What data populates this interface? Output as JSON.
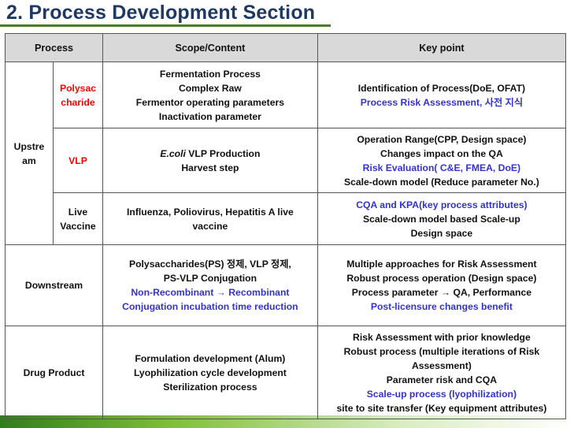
{
  "title": "2. Process Development Section",
  "colors": {
    "title": "#1f3864",
    "red": "#ff0000",
    "blue": "#3333cc",
    "header_bg": "#d9d9d9"
  },
  "headers": {
    "process": "Process",
    "scope": "Scope/Content",
    "key": "Key point"
  },
  "upstream": {
    "label_lines": [
      "Upstre",
      "am"
    ],
    "rows": [
      {
        "sub_lines": [
          "Polysac",
          "charide"
        ],
        "scope_lines": [
          "Fermentation Process",
          "Complex Raw",
          "Fermentor operating parameters",
          "Inactivation parameter"
        ],
        "key_lines": [
          {
            "text": "Identification of Process(DoE, OFAT)",
            "color": "black"
          },
          {
            "text": "Process Risk Assessment, 사전 지식",
            "color": "blue"
          }
        ]
      },
      {
        "sub_lines": [
          "VLP"
        ],
        "scope_lines_italic": "E.coli",
        "scope_lines": [
          "VLP Production",
          "Harvest step"
        ],
        "key_lines": [
          {
            "text": "Operation Range(CPP, Design space)",
            "color": "black"
          },
          {
            "text": "Changes impact on the QA",
            "color": "black"
          },
          {
            "text": "Risk Evaluation( C&E, FMEA, DoE)",
            "color": "blue"
          },
          {
            "text": "Scale-down model (Reduce parameter No.)",
            "color": "black"
          }
        ]
      },
      {
        "sub_lines": [
          "Live",
          "Vaccine"
        ],
        "scope_lines": [
          "Influenza, Poliovirus, Hepatitis A live",
          "vaccine"
        ],
        "key_lines": [
          {
            "text": "CQA and KPA(key process attributes)",
            "color": "blue"
          },
          {
            "text": "Scale-down model based Scale-up",
            "color": "black"
          },
          {
            "text": "Design space",
            "color": "black"
          }
        ]
      }
    ]
  },
  "downstream": {
    "label": "Downstream",
    "scope_lines": [
      {
        "text": "Polysaccharides(PS) 정제, VLP 정제,",
        "color": "black"
      },
      {
        "text": "PS-VLP Conjugation",
        "color": "black"
      },
      {
        "text": "Non-Recombinant → Recombinant",
        "color": "blue"
      },
      {
        "text": "Conjugation incubation time reduction",
        "color": "blue"
      }
    ],
    "key_lines": [
      {
        "text": "Multiple approaches for Risk Assessment",
        "color": "black"
      },
      {
        "text": "Robust process operation (Design space)",
        "color": "black"
      },
      {
        "text": "Process parameter → QA, Performance",
        "color": "black"
      },
      {
        "text": "Post-licensure changes benefit",
        "color": "blue"
      }
    ]
  },
  "drug_product": {
    "label": "Drug Product",
    "scope_lines": [
      "Formulation development (Alum)",
      "Lyophilization cycle development",
      "Sterilization process"
    ],
    "key_lines": [
      {
        "text": "Risk Assessment with prior knowledge",
        "color": "black"
      },
      {
        "text": "Robust process (multiple iterations of Risk",
        "color": "black"
      },
      {
        "text": "Assessment)",
        "color": "black"
      },
      {
        "text": "Parameter risk and CQA",
        "color": "black"
      },
      {
        "text": "Scale-up process (lyophilization)",
        "color": "blue"
      },
      {
        "text": "site to site transfer (Key equipment attributes)",
        "color": "black"
      }
    ]
  }
}
